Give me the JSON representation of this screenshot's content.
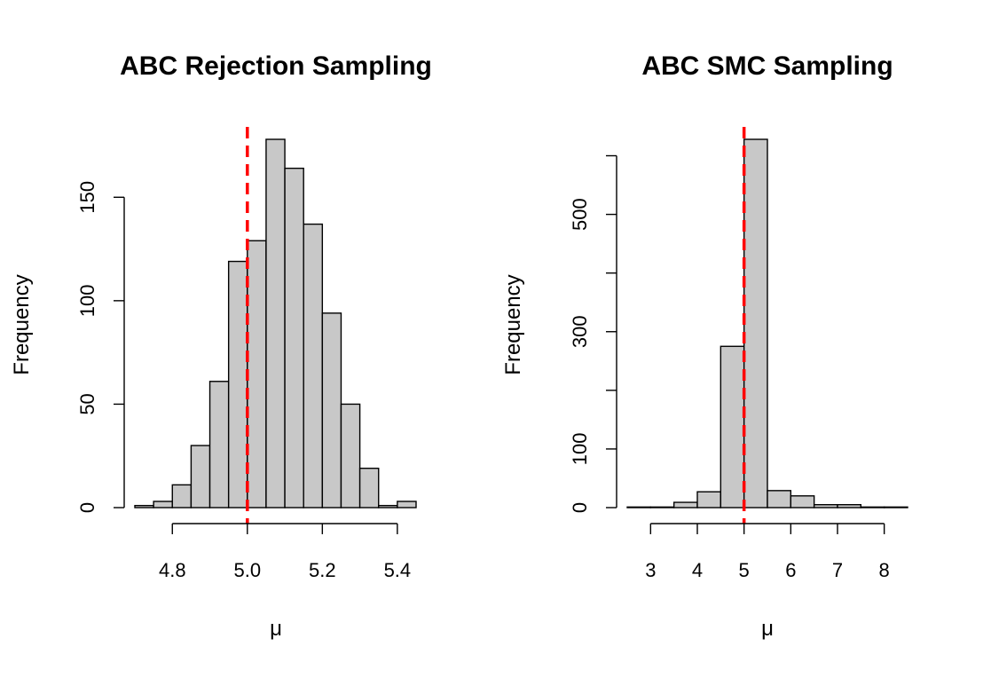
{
  "chart_data": [
    {
      "type": "bar",
      "title": "ABC Rejection Sampling",
      "xlabel": "μ",
      "ylabel": "Frequency",
      "bin_edges": [
        4.7,
        4.75,
        4.8,
        4.85,
        4.9,
        4.95,
        5.0,
        5.05,
        5.1,
        5.15,
        5.2,
        5.25,
        5.3,
        5.35,
        5.4,
        5.45
      ],
      "values": [
        1,
        3,
        11,
        30,
        61,
        119,
        129,
        178,
        164,
        137,
        94,
        50,
        19,
        1,
        3
      ],
      "xticks": [
        4.8,
        5.0,
        5.2,
        5.4
      ],
      "xtick_labels": [
        "4.8",
        "5.0",
        "5.2",
        "5.4"
      ],
      "yticks": [
        0,
        50,
        100,
        150
      ],
      "ytick_labels": [
        "0",
        "50",
        "100",
        "150"
      ],
      "xlim": [
        4.7,
        5.45
      ],
      "ylim": [
        0,
        178
      ],
      "reference_line": 5.0,
      "bar_color": "#c8c8c8",
      "line_color": "#ff0000"
    },
    {
      "type": "bar",
      "title": "ABC SMC Sampling",
      "xlabel": "μ",
      "ylabel": "Frequency",
      "bin_edges": [
        2.5,
        3.0,
        3.5,
        4.0,
        4.5,
        5.0,
        5.5,
        6.0,
        6.5,
        7.0,
        7.5,
        8.0,
        8.5
      ],
      "values": [
        1,
        1,
        9,
        27,
        275,
        628,
        29,
        20,
        5,
        5,
        1,
        1
      ],
      "xticks": [
        3,
        4,
        5,
        6,
        7,
        8
      ],
      "xtick_labels": [
        "3",
        "4",
        "5",
        "6",
        "7",
        "8"
      ],
      "yticks": [
        0,
        100,
        300,
        500
      ],
      "ytick_labels": [
        "0",
        "100",
        "300",
        "500"
      ],
      "yticks_minor": [
        200,
        400,
        600
      ],
      "xlim": [
        2.5,
        8.5
      ],
      "ylim": [
        0,
        628
      ],
      "reference_line": 5.0,
      "bar_color": "#c8c8c8",
      "line_color": "#ff0000"
    }
  ]
}
